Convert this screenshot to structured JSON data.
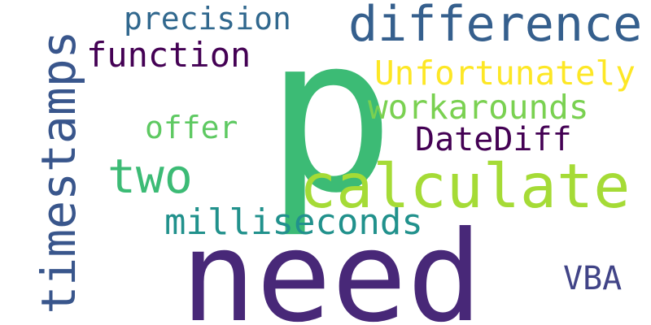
{
  "words": [
    {
      "text": "need",
      "color": "#482878"
    },
    {
      "text": "p",
      "color": "#3cbb75"
    },
    {
      "text": "calculate",
      "color": "#a5db36"
    },
    {
      "text": "difference",
      "color": "#355f8d"
    },
    {
      "text": "timestamps",
      "color": "#39568c"
    },
    {
      "text": "milliseconds",
      "color": "#21918c"
    },
    {
      "text": "Unfortunately",
      "color": "#fde725"
    },
    {
      "text": "workarounds",
      "color": "#7ad151"
    },
    {
      "text": "precision",
      "color": "#31688e"
    },
    {
      "text": "function",
      "color": "#440154"
    },
    {
      "text": "two",
      "color": "#3cbb75"
    },
    {
      "text": "DateDiff",
      "color": "#440154"
    },
    {
      "text": "offer",
      "color": "#5ec962"
    },
    {
      "text": "VBA",
      "color": "#414487"
    }
  ]
}
